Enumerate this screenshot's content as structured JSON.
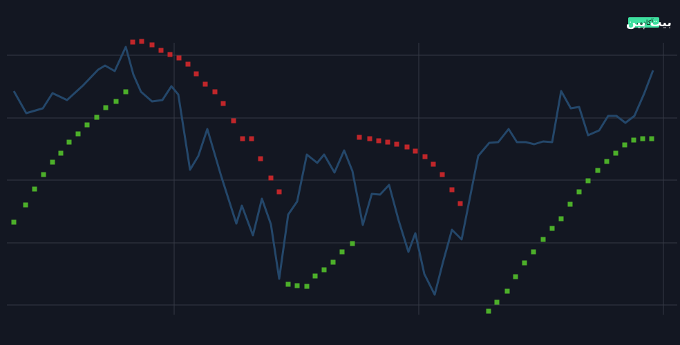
{
  "brand": {
    "name": "بیت پین",
    "badge": "آکادمی"
  },
  "chart_data": {
    "type": "line",
    "grid": true,
    "xlim": [
      0,
      984
    ],
    "ylim": [
      0,
      500
    ],
    "xticks": [
      252,
      606,
      960
    ],
    "yticks": [
      58,
      148,
      239,
      329,
      420
    ],
    "series": [
      {
        "type": "line",
        "color": "#24476a",
        "x": [
          20,
          38,
          62,
          76,
          97,
          120,
          142,
          152,
          166,
          182,
          193,
          204,
          220,
          235,
          248,
          258,
          275,
          287,
          300,
          320,
          342,
          350,
          366,
          379,
          392,
          404,
          417,
          430,
          444,
          459,
          469,
          484,
          498,
          510,
          525,
          538,
          550,
          563,
          577,
          591,
          601,
          614,
          629,
          641,
          654,
          668,
          692,
          708,
          721,
          736,
          748,
          761,
          773,
          786,
          799,
          812,
          826,
          838,
          851,
          867,
          880,
          892,
          905,
          918,
          932,
          945
        ],
        "values": [
          368,
          336,
          343,
          365,
          355,
          376,
          399,
          405,
          397,
          432,
          392,
          367,
          353,
          355,
          375,
          363,
          254,
          274,
          313,
          245,
          176,
          202,
          159,
          212,
          175,
          96,
          189,
          208,
          276,
          264,
          276,
          250,
          282,
          252,
          174,
          219,
          218,
          232,
          180,
          135,
          162,
          103,
          73,
          120,
          167,
          153,
          274,
          293,
          294,
          313,
          294,
          294,
          291,
          295,
          294,
          368,
          343,
          345,
          304,
          311,
          332,
          332,
          322,
          332,
          364,
          398
        ]
      },
      {
        "type": "scatter",
        "color": "#4caf2a",
        "x": [
          20,
          37,
          50,
          63,
          76,
          88,
          100,
          113,
          126,
          140,
          153,
          168,
          182,
          417,
          430,
          444,
          456,
          469,
          482,
          495,
          510,
          707,
          719,
          734,
          746,
          759,
          772,
          786,
          799,
          812,
          825,
          838,
          851,
          865,
          878,
          891,
          904,
          917,
          930,
          943
        ],
        "values": [
          178,
          203,
          226,
          247,
          265,
          278,
          294,
          306,
          319,
          330,
          344,
          353,
          367,
          88,
          86,
          85,
          100,
          109,
          120,
          135,
          147,
          49,
          62,
          78,
          99,
          119,
          135,
          153,
          169,
          183,
          204,
          222,
          238,
          253,
          266,
          278,
          290,
          297,
          299,
          299
        ]
      },
      {
        "type": "scatter",
        "color": "#c0262a",
        "x": [
          192,
          205,
          220,
          233,
          246,
          259,
          272,
          284,
          297,
          311,
          323,
          338,
          351,
          364,
          377,
          392,
          404,
          520,
          535,
          548,
          561,
          574,
          589,
          601,
          615,
          627,
          640,
          654,
          666
        ],
        "values": [
          439,
          440,
          435,
          427,
          421,
          416,
          407,
          393,
          378,
          367,
          350,
          325,
          299,
          299,
          270,
          242,
          222,
          301,
          299,
          296,
          294,
          291,
          287,
          281,
          273,
          262,
          247,
          225,
          205
        ]
      }
    ]
  }
}
